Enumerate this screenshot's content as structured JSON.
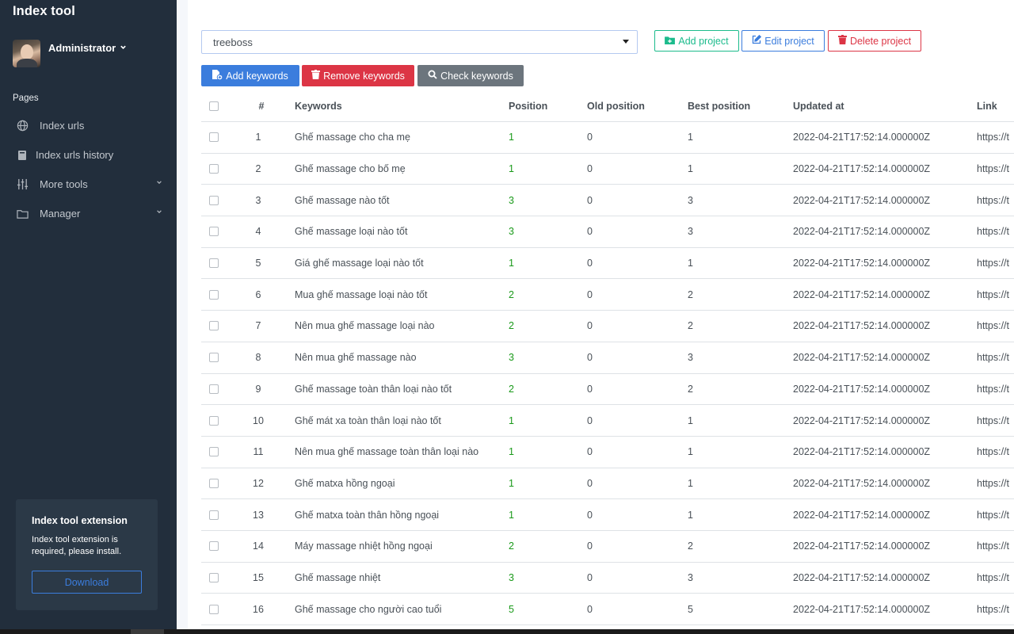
{
  "app": {
    "brand": "Index tool"
  },
  "user": {
    "name": "Administrator"
  },
  "sidebar": {
    "section_label": "Pages",
    "items": [
      {
        "label": "Index urls",
        "icon": "globe-icon",
        "has_submenu": false
      },
      {
        "label": "Index urls history",
        "icon": "book-icon",
        "has_submenu": false
      },
      {
        "label": "More tools",
        "icon": "sliders-icon",
        "has_submenu": true
      },
      {
        "label": "Manager",
        "icon": "folder-icon",
        "has_submenu": true
      }
    ],
    "extension": {
      "title": "Index tool extension",
      "text": "Index tool extension is required, please install.",
      "button": "Download"
    }
  },
  "project": {
    "selected": "treeboss",
    "add_label": "Add project",
    "edit_label": "Edit project",
    "delete_label": "Delete project"
  },
  "keywords_toolbar": {
    "add_label": "Add keywords",
    "remove_label": "Remove keywords",
    "check_label": "Check keywords"
  },
  "colors": {
    "primary": "#3b7ddd",
    "success": "#1cbb8c",
    "danger": "#dc3545",
    "secondary": "#6c757d",
    "sidebar": "#222e3c"
  },
  "table": {
    "headers": {
      "num": "#",
      "keywords": "Keywords",
      "position": "Position",
      "old_position": "Old position",
      "best_position": "Best position",
      "updated_at": "Updated at",
      "link": "Link"
    },
    "rows": [
      {
        "num": "1",
        "keyword": "Ghế massage cho cha mẹ",
        "position": "1",
        "old": "0",
        "best": "1",
        "updated": "2022-04-21T17:52:14.000000Z",
        "link": "https://t"
      },
      {
        "num": "2",
        "keyword": "Ghế massage cho bố mẹ",
        "position": "1",
        "old": "0",
        "best": "1",
        "updated": "2022-04-21T17:52:14.000000Z",
        "link": "https://t"
      },
      {
        "num": "3",
        "keyword": "Ghế massage nào tốt",
        "position": "3",
        "old": "0",
        "best": "3",
        "updated": "2022-04-21T17:52:14.000000Z",
        "link": "https://t"
      },
      {
        "num": "4",
        "keyword": "Ghế massage loại nào tốt",
        "position": "3",
        "old": "0",
        "best": "3",
        "updated": "2022-04-21T17:52:14.000000Z",
        "link": "https://t"
      },
      {
        "num": "5",
        "keyword": "Giá ghế massage loại nào tốt",
        "position": "1",
        "old": "0",
        "best": "1",
        "updated": "2022-04-21T17:52:14.000000Z",
        "link": "https://t"
      },
      {
        "num": "6",
        "keyword": "Mua ghế massage loại nào tốt",
        "position": "2",
        "old": "0",
        "best": "2",
        "updated": "2022-04-21T17:52:14.000000Z",
        "link": "https://t"
      },
      {
        "num": "7",
        "keyword": "Nên mua ghế massage loại nào",
        "position": "2",
        "old": "0",
        "best": "2",
        "updated": "2022-04-21T17:52:14.000000Z",
        "link": "https://t"
      },
      {
        "num": "8",
        "keyword": "Nên mua ghế massage nào",
        "position": "3",
        "old": "0",
        "best": "3",
        "updated": "2022-04-21T17:52:14.000000Z",
        "link": "https://t"
      },
      {
        "num": "9",
        "keyword": "Ghế massage toàn thân loại nào tốt",
        "position": "2",
        "old": "0",
        "best": "2",
        "updated": "2022-04-21T17:52:14.000000Z",
        "link": "https://t"
      },
      {
        "num": "10",
        "keyword": "Ghế mát xa toàn thân loại nào tốt",
        "position": "1",
        "old": "0",
        "best": "1",
        "updated": "2022-04-21T17:52:14.000000Z",
        "link": "https://t"
      },
      {
        "num": "11",
        "keyword": "Nên mua ghế massage toàn thân loại nào",
        "position": "1",
        "old": "0",
        "best": "1",
        "updated": "2022-04-21T17:52:14.000000Z",
        "link": "https://t"
      },
      {
        "num": "12",
        "keyword": "Ghế matxa hồng ngoại",
        "position": "1",
        "old": "0",
        "best": "1",
        "updated": "2022-04-21T17:52:14.000000Z",
        "link": "https://t"
      },
      {
        "num": "13",
        "keyword": "Ghế matxa toàn thân hồng ngoại",
        "position": "1",
        "old": "0",
        "best": "1",
        "updated": "2022-04-21T17:52:14.000000Z",
        "link": "https://t"
      },
      {
        "num": "14",
        "keyword": "Máy massage nhiệt hồng ngoại",
        "position": "2",
        "old": "0",
        "best": "2",
        "updated": "2022-04-21T17:52:14.000000Z",
        "link": "https://t"
      },
      {
        "num": "15",
        "keyword": "Ghế massage nhiệt",
        "position": "3",
        "old": "0",
        "best": "3",
        "updated": "2022-04-21T17:52:14.000000Z",
        "link": "https://t"
      },
      {
        "num": "16",
        "keyword": "Ghế massage cho người cao tuổi",
        "position": "5",
        "old": "0",
        "best": "5",
        "updated": "2022-04-21T17:52:14.000000Z",
        "link": "https://t"
      }
    ]
  }
}
